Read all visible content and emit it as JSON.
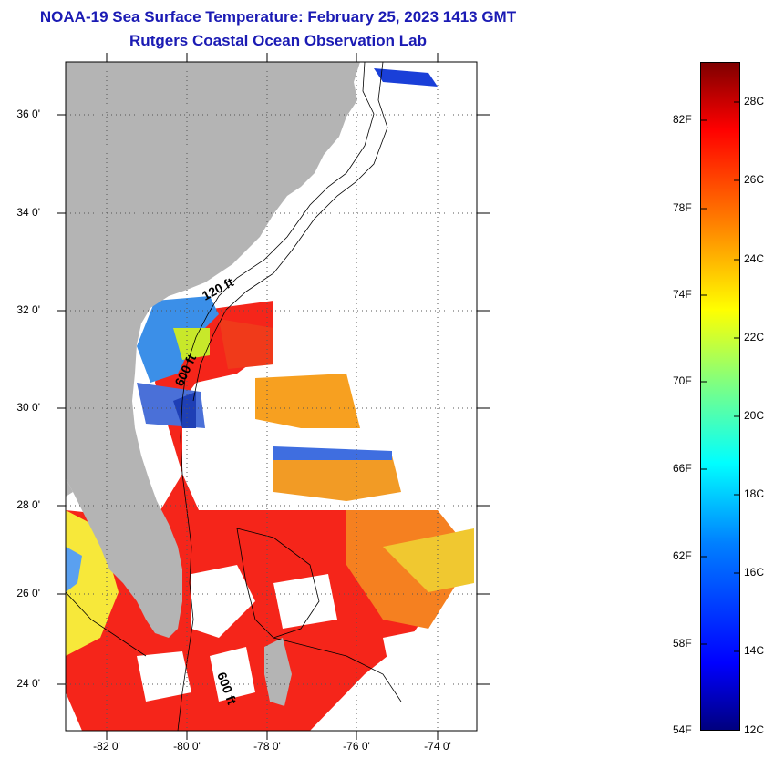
{
  "title": "NOAA-19 Sea Surface Temperature:  February 25, 2023 1413 GMT",
  "subtitle": "Rutgers Coastal Ocean Observation Lab",
  "map": {
    "lat_labels": [
      "36 0'",
      "34 0'",
      "32 0'",
      "30 0'",
      "28 0'",
      "26 0'",
      "24 0'"
    ],
    "lon_labels": [
      "-82 0'",
      "-80 0'",
      "-78 0'",
      "-76 0'",
      "-74 0'"
    ],
    "contour_labels": [
      "120 ft",
      "600 ft",
      "600 ft"
    ],
    "colors": {
      "land": "#b4b4b4",
      "cloud": "#ffffff",
      "ocean_warm": "#f01e10",
      "ocean_mid": "#f7741a",
      "ocean_cool": "#3b7fe5"
    }
  },
  "colorbar": {
    "f_labels": [
      "82F",
      "78F",
      "74F",
      "70F",
      "66F",
      "62F",
      "58F",
      "54F"
    ],
    "c_labels": [
      "28C",
      "26C",
      "24C",
      "22C",
      "20C",
      "18C",
      "16C",
      "14C",
      "12C"
    ],
    "min_c": 12,
    "max_c": 29,
    "gradient": [
      "#00007f",
      "#0000ff",
      "#0080ff",
      "#00ffff",
      "#80ff80",
      "#ffff00",
      "#ff8000",
      "#ff0000",
      "#7f0000"
    ]
  }
}
